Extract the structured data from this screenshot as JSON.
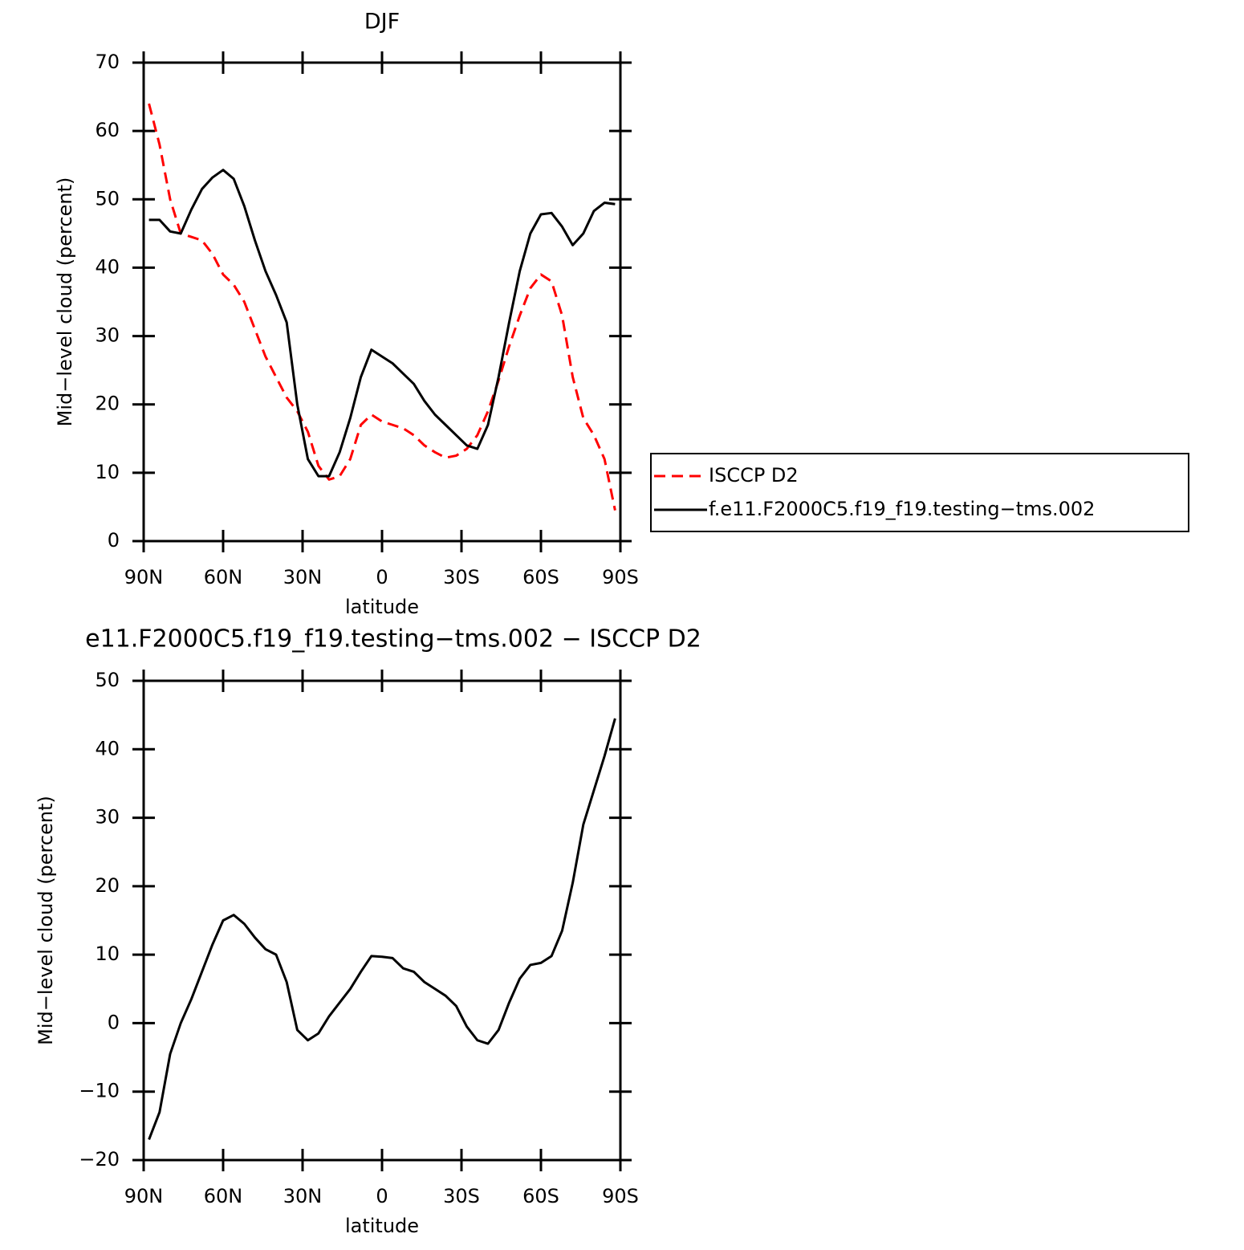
{
  "chart_data": [
    {
      "type": "line",
      "title": "DJF",
      "xlabel": "latitude",
      "ylabel": "Mid−level cloud (percent)",
      "xlim": [
        90,
        -90
      ],
      "xticks": [
        {
          "value": 90,
          "label": "90N"
        },
        {
          "value": 60,
          "label": "60N"
        },
        {
          "value": 30,
          "label": "30N"
        },
        0,
        {
          "value": -30,
          "label": "30S"
        },
        {
          "value": -60,
          "label": "60S"
        },
        {
          "value": -90,
          "label": "90S"
        }
      ],
      "ylim": [
        0,
        70
      ],
      "yticks": [
        0,
        10,
        20,
        30,
        40,
        50,
        60,
        70
      ],
      "legend": "outside-right",
      "x": [
        88,
        84,
        80,
        76,
        72,
        68,
        64,
        60,
        56,
        52,
        48,
        44,
        40,
        36,
        32,
        28,
        24,
        20,
        16,
        12,
        8,
        4,
        0,
        -4,
        -8,
        -12,
        -16,
        -20,
        -24,
        -28,
        -32,
        -36,
        -40,
        -44,
        -48,
        -52,
        -56,
        -60,
        -64,
        -68,
        -72,
        -76,
        -80,
        -84,
        -88
      ],
      "series": [
        {
          "name": "ISCCP D2",
          "color": "#ff0000",
          "style": "dashed",
          "values": [
            64,
            58,
            50,
            45,
            44.5,
            44,
            42,
            39,
            37.5,
            35,
            31,
            27,
            24,
            21,
            19,
            16,
            11,
            9,
            9.5,
            12,
            17,
            18.5,
            17.5,
            17,
            16.5,
            15.5,
            14,
            13,
            12.2,
            12.5,
            13.5,
            15.5,
            19,
            23.5,
            28.5,
            33,
            37,
            39,
            38,
            33,
            24,
            18,
            15.5,
            12,
            4.5
          ]
        },
        {
          "name": "f.e11.F2000C5.f19_f19.testing−tms.002",
          "color": "#000000",
          "style": "solid",
          "values": [
            47,
            47,
            45.3,
            45,
            48.5,
            51.5,
            53.2,
            54.3,
            53,
            49,
            44,
            39.5,
            36,
            32,
            20,
            12,
            9.5,
            9.5,
            13,
            18,
            24,
            28,
            27,
            26,
            24.5,
            23,
            20.5,
            18.5,
            17,
            15.5,
            14,
            13.5,
            17,
            24,
            32,
            39.5,
            45,
            47.8,
            48,
            46,
            43.3,
            45,
            48.3,
            49.5,
            49.3
          ]
        }
      ]
    },
    {
      "type": "line",
      "title": "e11.F2000C5.f19_f19.testing−tms.002 − ISCCP D2",
      "xlabel": "latitude",
      "ylabel": "Mid−level cloud (percent)",
      "xlim": [
        90,
        -90
      ],
      "xticks": [
        {
          "value": 90,
          "label": "90N"
        },
        {
          "value": 60,
          "label": "60N"
        },
        {
          "value": 30,
          "label": "30N"
        },
        0,
        {
          "value": -30,
          "label": "30S"
        },
        {
          "value": -60,
          "label": "60S"
        },
        {
          "value": -90,
          "label": "90S"
        }
      ],
      "ylim": [
        -20,
        50
      ],
      "yticks": [
        {
          "value": -20,
          "label": "−20"
        },
        {
          "value": -10,
          "label": "−10"
        },
        0,
        10,
        20,
        30,
        40,
        50
      ],
      "x": [
        88,
        84,
        80,
        76,
        72,
        68,
        64,
        60,
        56,
        52,
        48,
        44,
        40,
        36,
        32,
        28,
        24,
        20,
        16,
        12,
        8,
        4,
        0,
        -4,
        -8,
        -12,
        -16,
        -20,
        -24,
        -28,
        -32,
        -36,
        -40,
        -44,
        -48,
        -52,
        -56,
        -60,
        -64,
        -68,
        -72,
        -76,
        -80,
        -84,
        -88
      ],
      "series": [
        {
          "color": "#000000",
          "style": "solid",
          "values": [
            -17,
            -13,
            -4.5,
            0,
            3.5,
            7.5,
            11.5,
            15,
            15.8,
            14.5,
            12.5,
            10.8,
            10,
            6,
            -1,
            -2.5,
            -1.5,
            1,
            3,
            5,
            7.5,
            9.8,
            9.7,
            9.5,
            8,
            7.5,
            6,
            5,
            4,
            2.5,
            -0.5,
            -2.5,
            -3,
            -1,
            3,
            6.5,
            8.5,
            8.8,
            9.8,
            13.5,
            20.5,
            29,
            34,
            39,
            44.5
          ]
        }
      ]
    }
  ]
}
